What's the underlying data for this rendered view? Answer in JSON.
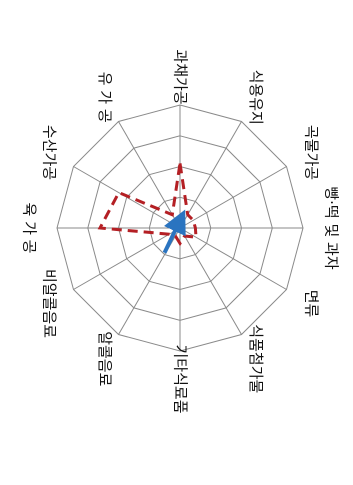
{
  "chart_data": {
    "type": "radar",
    "categories": [
      "과채가공",
      "식용유지",
      "곡물가공",
      "빵·떡 및 과자",
      "면류",
      "식품첨가물",
      "기타식료품",
      "알콜음료",
      "비알콜음료",
      "육 가 공",
      "수산가공",
      "유 가 공"
    ],
    "rings": 4,
    "rlim": [
      0,
      4
    ],
    "grid": true,
    "series": [
      {
        "values": [
          2.1,
          0.5,
          0.5,
          0.5,
          0.6,
          0.3,
          0.5,
          0.3,
          0.4,
          2.6,
          2.3,
          0.5
        ],
        "color": "#b41f24",
        "style": "dashed"
      }
    ],
    "annotations": [
      {
        "type": "arrow",
        "from_value": 0.95,
        "from_axis_angle_deg": 212,
        "to_value": 0.25,
        "to_axis_angle_deg": 0,
        "color": "#2a74c0"
      }
    ]
  }
}
